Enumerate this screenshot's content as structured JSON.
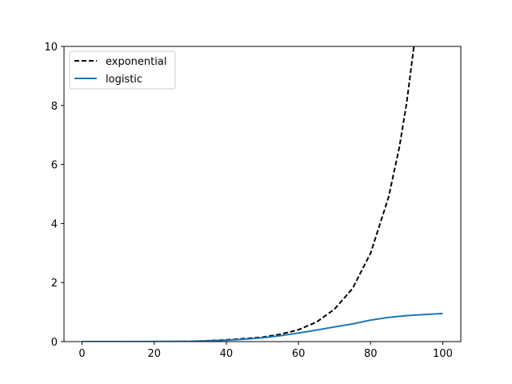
{
  "chart_data": {
    "type": "line",
    "title": "",
    "xlabel": "",
    "ylabel": "",
    "xlim": [
      -5,
      105
    ],
    "ylim": [
      0,
      10
    ],
    "x_ticks": [
      "0",
      "20",
      "40",
      "60",
      "80",
      "100"
    ],
    "y_ticks": [
      "0",
      "2",
      "4",
      "6",
      "8",
      "10"
    ],
    "grid": false,
    "legend_position": "top-left",
    "series": [
      {
        "name": "exponential",
        "style": "dashed",
        "color": "#000000",
        "x": [
          0,
          10,
          20,
          30,
          40,
          45,
          50,
          55,
          60,
          65,
          70,
          75,
          80,
          85,
          88,
          90,
          92
        ],
        "y": [
          0.0001,
          0.0003,
          0.0008,
          0.002,
          0.06,
          0.1,
          0.15,
          0.25,
          0.4,
          0.66,
          1.1,
          1.8,
          3.0,
          4.9,
          6.6,
          8.1,
          10.0
        ]
      },
      {
        "name": "logistic",
        "style": "solid",
        "color": "#1f77b4",
        "x": [
          0,
          10,
          20,
          30,
          40,
          45,
          50,
          55,
          60,
          65,
          70,
          75,
          80,
          85,
          90,
          95,
          100
        ],
        "y": [
          0.0,
          0.0005,
          0.002,
          0.01,
          0.05,
          0.08,
          0.13,
          0.2,
          0.29,
          0.39,
          0.5,
          0.6,
          0.73,
          0.82,
          0.88,
          0.92,
          0.95
        ]
      }
    ]
  }
}
